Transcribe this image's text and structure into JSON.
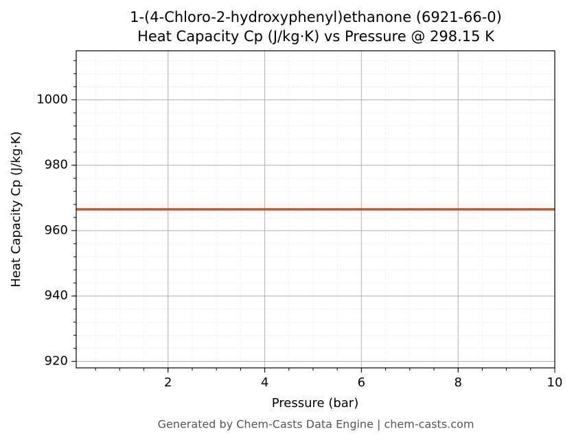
{
  "chart_data": {
    "type": "line",
    "title": "1-(4-Chloro-2-hydroxyphenyl)ethanone (6921-66-0)",
    "subtitle": "Heat Capacity Cp (J/kg·K) vs Pressure @ 298.15 K",
    "x_label": "Pressure (bar)",
    "y_label": "Heat Capacity Cp (J/kg·K)",
    "footer": "Generated by Chem-Casts Data Engine | chem-casts.com",
    "x": [
      0.1,
      10
    ],
    "series": [
      {
        "color": "#c0562a",
        "values": [
          966.5,
          966.5
        ]
      }
    ],
    "xlim": [
      0.1,
      10
    ],
    "xticks": [
      2,
      4,
      6,
      8,
      10
    ],
    "ylim": [
      918,
      1015
    ],
    "yticks": [
      920,
      940,
      960,
      980,
      1000
    ],
    "grid": true,
    "minor_grid": true
  }
}
